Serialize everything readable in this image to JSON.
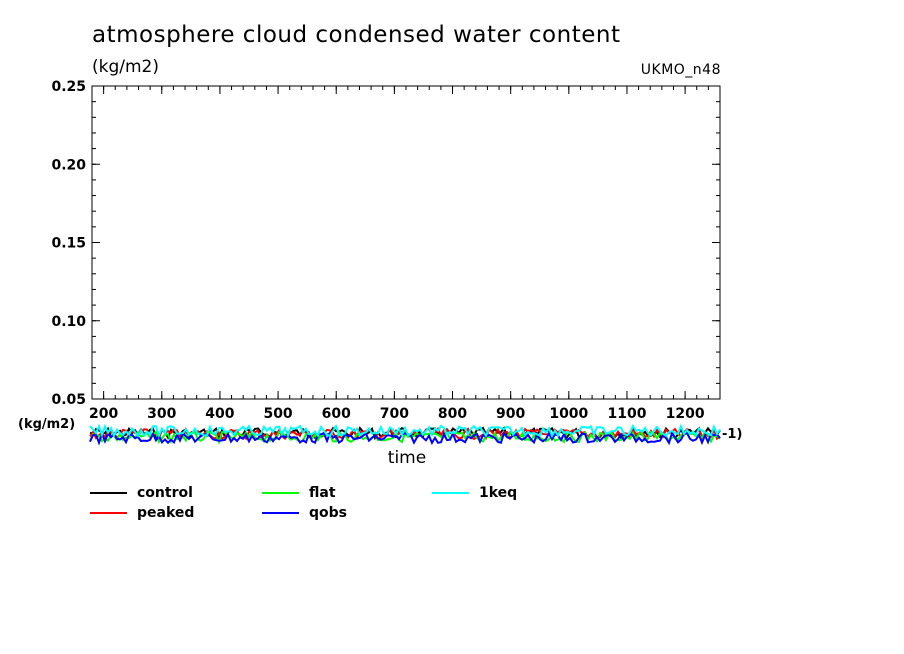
{
  "chart_data": {
    "type": "line",
    "title": "atmosphere cloud condensed water content",
    "units": "(kg/m2)",
    "model_label": "UKMO_n48",
    "xlabel": "time",
    "ylabel": "",
    "ylim": [
      0.05,
      0.25
    ],
    "xlim": [
      180,
      1260
    ],
    "yticks": [
      "0.05",
      "0.10",
      "0.15",
      "0.20",
      "0.25"
    ],
    "xticks": [
      "200",
      "300",
      "400",
      "500",
      "600",
      "700",
      "800",
      "900",
      "1000",
      "1100",
      "1200"
    ],
    "overflow_units_label": "(kg/m2)",
    "overflow_right_label": "-1)",
    "grid": false,
    "legend_position": "bottom",
    "series": [
      {
        "name": "control",
        "color": "#000000",
        "mean": 0.0415,
        "values_note": ""
      },
      {
        "name": "peaked",
        "color": "#ff0000",
        "mean": 0.0412,
        "values_note": ""
      },
      {
        "name": "flat",
        "color": "#00ff00",
        "mean": 0.04,
        "values_note": ""
      },
      {
        "name": "qobs",
        "color": "#0000ff",
        "mean": 0.0398,
        "values_note": ""
      },
      {
        "name": "1keq",
        "color": "#00ffff",
        "mean": 0.042,
        "values_note": ""
      }
    ]
  }
}
